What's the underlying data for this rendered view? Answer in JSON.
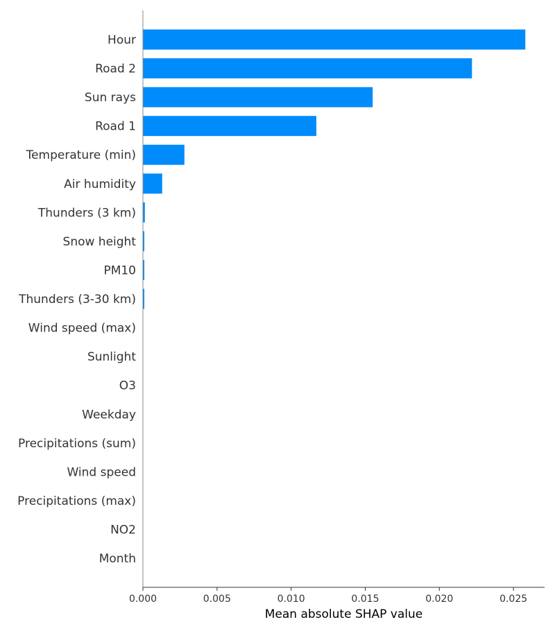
{
  "chart_data": {
    "type": "bar",
    "orientation": "horizontal",
    "bar_color": "#008bfb",
    "title": "",
    "xlabel": "Mean absolute SHAP value",
    "ylabel": "",
    "xlim": [
      0,
      0.0271
    ],
    "xticks": [
      0.0,
      0.005,
      0.01,
      0.015,
      0.02,
      0.025
    ],
    "xtick_labels": [
      "0.000",
      "0.005",
      "0.010",
      "0.015",
      "0.020",
      "0.025"
    ],
    "grid": false,
    "categories": [
      "Hour",
      "Road 2",
      "Sun rays",
      "Road 1",
      "Temperature (min)",
      "Air humidity",
      "Thunders (3 km)",
      "Snow height",
      "PM10",
      "Thunders (3-30 km)",
      "Wind speed (max)",
      "Sunlight",
      "O3",
      "Weekday",
      "Precipitations (sum)",
      "Wind speed",
      "Precipitations (max)",
      "NO2",
      "Month"
    ],
    "values": [
      0.0258,
      0.0222,
      0.0155,
      0.0117,
      0.0028,
      0.0013,
      0.00013,
      9e-05,
      9e-05,
      9e-05,
      0,
      0,
      0,
      0,
      0,
      0,
      0,
      0,
      0
    ]
  }
}
